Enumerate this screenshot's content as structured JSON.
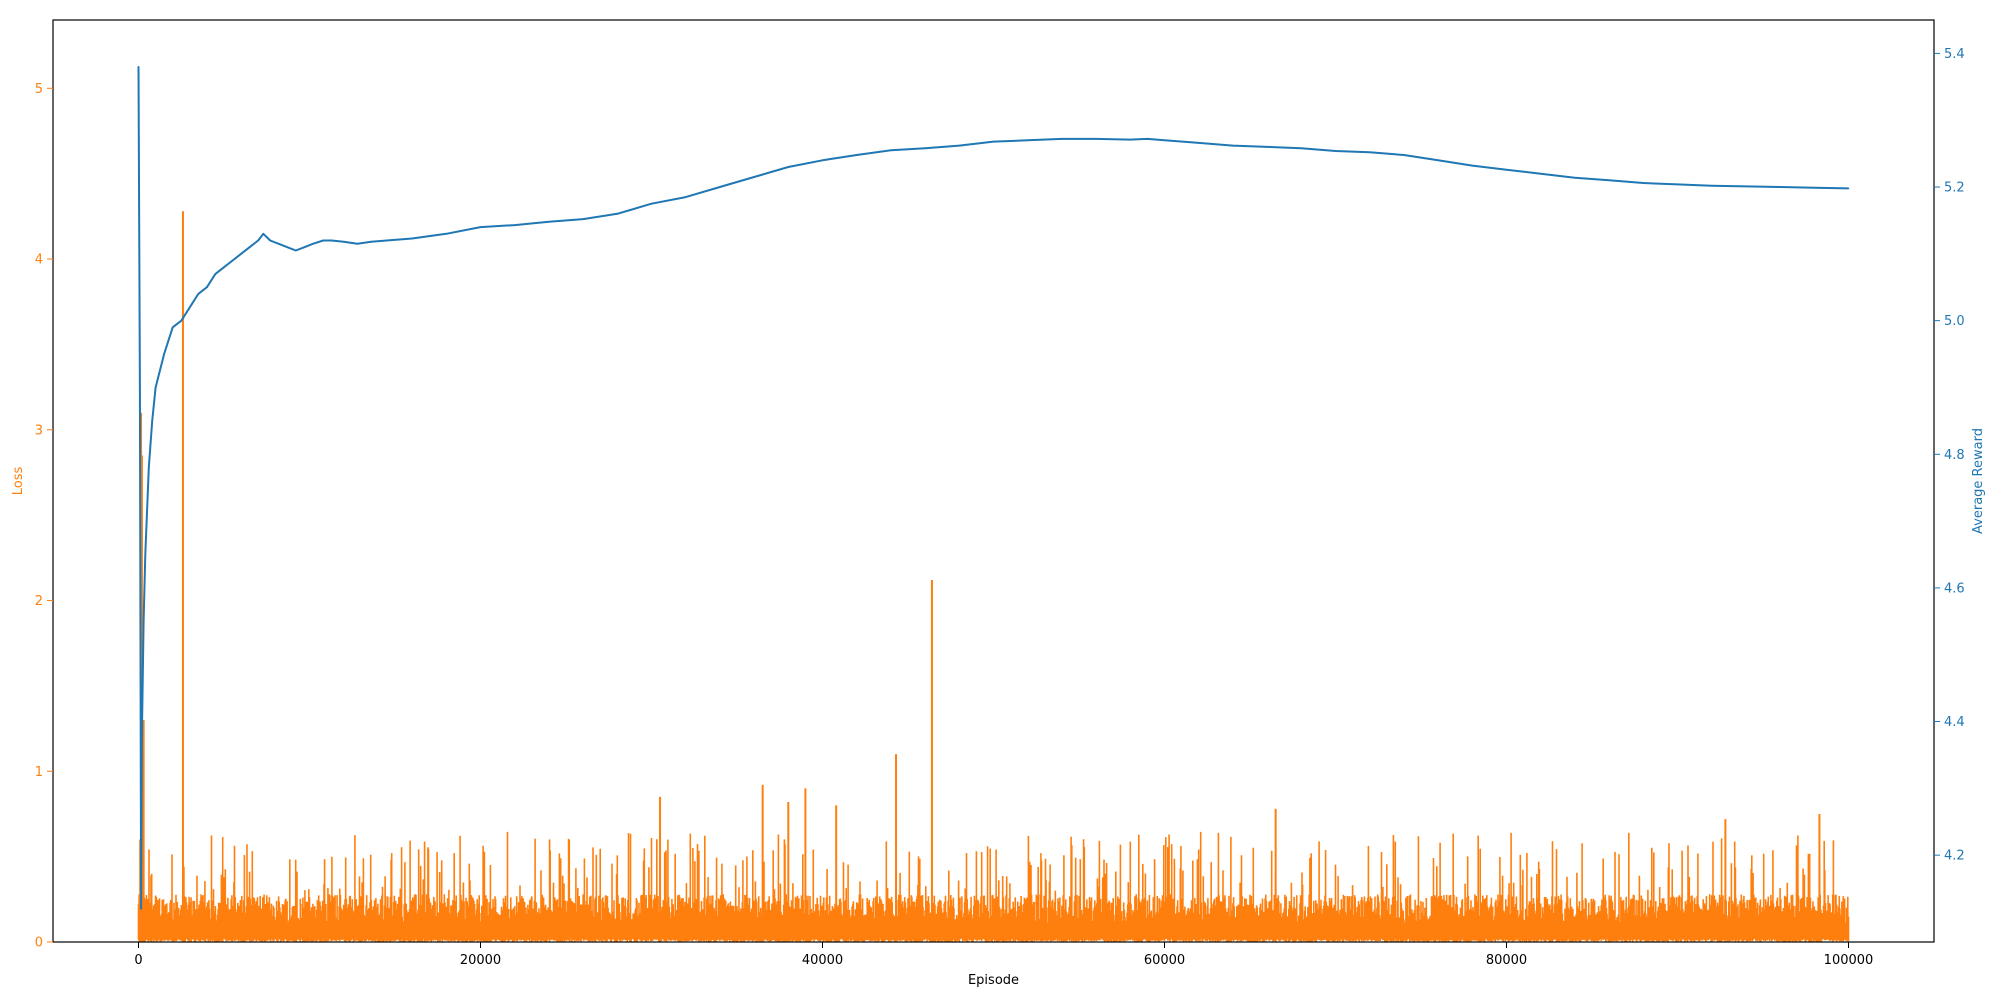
{
  "chart_data": {
    "type": "line",
    "title": "",
    "xlabel": "Episode",
    "ylabel_left": "Loss",
    "ylabel_right": "Average Reward",
    "xlim": [
      -5000,
      105000
    ],
    "ylim_left": [
      0,
      5.4
    ],
    "ylim_right": [
      4.07,
      5.45
    ],
    "grid": false,
    "x_ticks": [
      {
        "value": 0,
        "label": "0"
      },
      {
        "value": 20000,
        "label": "20000"
      },
      {
        "value": 40000,
        "label": "40000"
      },
      {
        "value": 60000,
        "label": "60000"
      },
      {
        "value": 80000,
        "label": "80000"
      },
      {
        "value": 100000,
        "label": "100000"
      }
    ],
    "y_ticks_left": [
      {
        "value": 0,
        "label": "0"
      },
      {
        "value": 1,
        "label": "1"
      },
      {
        "value": 2,
        "label": "2"
      },
      {
        "value": 3,
        "label": "3"
      },
      {
        "value": 4,
        "label": "4"
      },
      {
        "value": 5,
        "label": "5"
      }
    ],
    "y_ticks_right": [
      {
        "value": 4.2,
        "label": "4.2"
      },
      {
        "value": 4.4,
        "label": "4.4"
      },
      {
        "value": 4.6,
        "label": "4.6"
      },
      {
        "value": 4.8,
        "label": "4.8"
      },
      {
        "value": 5.0,
        "label": "5.0"
      },
      {
        "value": 5.2,
        "label": "5.2"
      },
      {
        "value": 5.4,
        "label": "5.4"
      }
    ],
    "colors": {
      "loss": "#ff7f0e",
      "reward": "#1f77b4"
    },
    "series": [
      {
        "axis": "right",
        "color": "#1f77b4",
        "x": [
          0,
          80,
          150,
          200,
          300,
          400,
          600,
          800,
          1000,
          1500,
          2000,
          2500,
          3000,
          3500,
          4000,
          4500,
          5000,
          5500,
          6000,
          6500,
          7000,
          7300,
          7700,
          8200,
          8700,
          9200,
          9700,
          10200,
          10800,
          11300,
          12000,
          12800,
          13600,
          14500,
          16000,
          18000,
          20000,
          22000,
          24000,
          26000,
          28000,
          30000,
          32000,
          34000,
          36000,
          38000,
          40000,
          42000,
          44000,
          46000,
          48000,
          50000,
          52000,
          54000,
          56000,
          58000,
          59000,
          60000,
          62000,
          64000,
          66000,
          68000,
          70000,
          72000,
          74000,
          76000,
          78000,
          80000,
          82000,
          84000,
          86000,
          88000,
          90000,
          92000,
          94000,
          96000,
          98000,
          100000
        ],
        "y": [
          5.38,
          4.9,
          4.12,
          4.38,
          4.55,
          4.65,
          4.78,
          4.85,
          4.9,
          4.95,
          4.99,
          5.0,
          5.02,
          5.04,
          5.05,
          5.07,
          5.08,
          5.09,
          5.1,
          5.11,
          5.12,
          5.13,
          5.12,
          5.115,
          5.11,
          5.105,
          5.11,
          5.115,
          5.12,
          5.12,
          5.118,
          5.115,
          5.118,
          5.12,
          5.123,
          5.13,
          5.14,
          5.143,
          5.148,
          5.152,
          5.16,
          5.175,
          5.185,
          5.2,
          5.215,
          5.23,
          5.24,
          5.248,
          5.255,
          5.258,
          5.262,
          5.268,
          5.27,
          5.272,
          5.272,
          5.271,
          5.272,
          5.27,
          5.266,
          5.262,
          5.26,
          5.258,
          5.254,
          5.252,
          5.248,
          5.24,
          5.232,
          5.226,
          5.22,
          5.214,
          5.21,
          5.206,
          5.204,
          5.202,
          5.201,
          5.2,
          5.199,
          5.198
        ]
      },
      {
        "axis": "left",
        "color": "#ff7f0e",
        "baseline_band": [
          0.02,
          0.28
        ],
        "spikes": [
          {
            "x": 50,
            "y": 0.25
          },
          {
            "x": 100,
            "y": 0.6
          },
          {
            "x": 150,
            "y": 3.1
          },
          {
            "x": 200,
            "y": 2.85
          },
          {
            "x": 300,
            "y": 1.3
          },
          {
            "x": 2600,
            "y": 4.28
          },
          {
            "x": 30500,
            "y": 0.85
          },
          {
            "x": 36500,
            "y": 0.92
          },
          {
            "x": 38000,
            "y": 0.82
          },
          {
            "x": 39000,
            "y": 0.9
          },
          {
            "x": 40800,
            "y": 0.8
          },
          {
            "x": 44300,
            "y": 1.1
          },
          {
            "x": 46400,
            "y": 2.12
          },
          {
            "x": 66500,
            "y": 0.78
          },
          {
            "x": 92800,
            "y": 0.72
          },
          {
            "x": 98300,
            "y": 0.75
          }
        ]
      }
    ]
  }
}
